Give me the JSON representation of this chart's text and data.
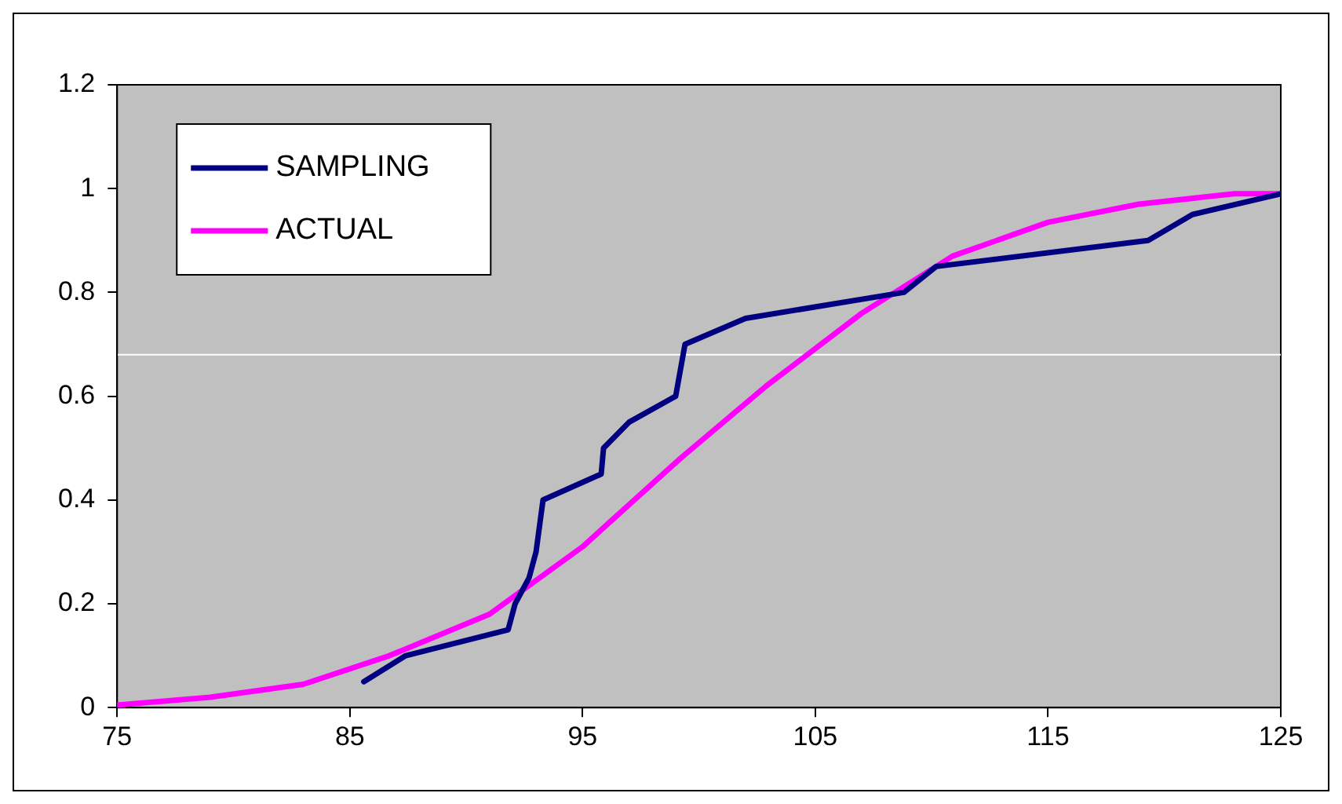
{
  "chart_data": {
    "type": "line",
    "xlim": [
      75,
      125
    ],
    "xticks": [
      75,
      85,
      95,
      105,
      115,
      125
    ],
    "ylim": [
      0,
      1.2
    ],
    "yticks": [
      0,
      0.2,
      0.4,
      0.6,
      0.8,
      1,
      1.2
    ],
    "grid": false,
    "legend": "top left",
    "marker": "none",
    "line_style": "solid",
    "series": [
      {
        "name": "SAMPLING",
        "color": "#000080",
        "x": [
          85.6,
          87.4,
          91.8,
          92.1,
          92.7,
          93.0,
          93.3,
          95.8,
          95.9,
          97.0,
          99.0,
          99.4,
          102.0,
          108.8,
          110.2,
          119.3,
          121.2,
          125
        ],
        "values": [
          0.05,
          0.1,
          0.15,
          0.2,
          0.25,
          0.3,
          0.4,
          0.45,
          0.5,
          0.55,
          0.6,
          0.7,
          0.75,
          0.8,
          0.85,
          0.9,
          0.95,
          0.99
        ]
      },
      {
        "name": "ACTUAL",
        "color": "#ff00ff",
        "x": [
          75,
          79,
          83,
          86.7,
          91,
          95,
          99.2,
          102.9,
          107,
          110.9,
          115,
          118.9,
          123,
          125
        ],
        "values": [
          0.005,
          0.02,
          0.045,
          0.1,
          0.18,
          0.31,
          0.48,
          0.62,
          0.76,
          0.87,
          0.935,
          0.97,
          0.99,
          0.99
        ]
      }
    ],
    "ref_lines": [
      {
        "axis": "y",
        "value": 0.68,
        "color": "#ffffff"
      }
    ]
  }
}
